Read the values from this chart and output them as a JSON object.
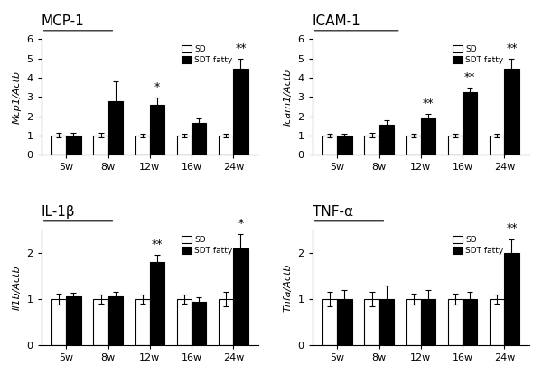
{
  "panels": [
    {
      "title": "MCP-1",
      "ylabel": "Mcp1/Actb",
      "ylim": [
        0,
        6
      ],
      "yticks": [
        0,
        1,
        2,
        3,
        4,
        5,
        6
      ],
      "time_points": [
        "5w",
        "8w",
        "12w",
        "16w",
        "24w"
      ],
      "sd_values": [
        1.0,
        1.0,
        1.0,
        1.0,
        1.0
      ],
      "sd_errors": [
        0.12,
        0.12,
        0.1,
        0.1,
        0.1
      ],
      "sdt_values": [
        1.0,
        2.8,
        2.6,
        1.65,
        4.45
      ],
      "sdt_errors": [
        0.15,
        1.0,
        0.35,
        0.25,
        0.55
      ],
      "significance": [
        "",
        "",
        "*",
        "",
        "**"
      ]
    },
    {
      "title": "ICAM-1",
      "ylabel": "Icam1/Actb",
      "ylim": [
        0,
        6
      ],
      "yticks": [
        0,
        1,
        2,
        3,
        4,
        5,
        6
      ],
      "time_points": [
        "5w",
        "8w",
        "12w",
        "16w",
        "24w"
      ],
      "sd_values": [
        1.0,
        1.0,
        1.0,
        1.0,
        1.0
      ],
      "sd_errors": [
        0.1,
        0.12,
        0.1,
        0.1,
        0.1
      ],
      "sdt_values": [
        1.0,
        1.55,
        1.9,
        3.25,
        4.45
      ],
      "sdt_errors": [
        0.08,
        0.25,
        0.2,
        0.25,
        0.55
      ],
      "significance": [
        "",
        "",
        "**",
        "**",
        "**"
      ]
    },
    {
      "title": "IL-1β",
      "ylabel": "Il1b/Actb",
      "ylim": [
        0,
        2.5
      ],
      "yticks": [
        0,
        1,
        2
      ],
      "time_points": [
        "5w",
        "8w",
        "12w",
        "16w",
        "24w"
      ],
      "sd_values": [
        1.0,
        1.0,
        1.0,
        1.0,
        1.0
      ],
      "sd_errors": [
        0.12,
        0.1,
        0.1,
        0.1,
        0.15
      ],
      "sdt_values": [
        1.05,
        1.05,
        1.8,
        0.95,
        2.1
      ],
      "sdt_errors": [
        0.08,
        0.1,
        0.15,
        0.08,
        0.3
      ],
      "significance": [
        "",
        "",
        "**",
        "",
        "*"
      ]
    },
    {
      "title": "TNF-α",
      "ylabel": "Tnfa/Actb",
      "ylim": [
        0,
        2.5
      ],
      "yticks": [
        0,
        1,
        2
      ],
      "time_points": [
        "5w",
        "8w",
        "12w",
        "16w",
        "24w"
      ],
      "sd_values": [
        1.0,
        1.0,
        1.0,
        1.0,
        1.0
      ],
      "sd_errors": [
        0.15,
        0.15,
        0.12,
        0.12,
        0.1
      ],
      "sdt_values": [
        1.0,
        1.0,
        1.0,
        1.0,
        2.0
      ],
      "sdt_errors": [
        0.2,
        0.3,
        0.2,
        0.15,
        0.3
      ],
      "significance": [
        "",
        "",
        "",
        "",
        "**"
      ]
    }
  ],
  "bar_width": 0.35,
  "sd_color": "white",
  "sdt_color": "black",
  "edge_color": "black",
  "background_color": "white",
  "legend_labels": [
    "SD",
    "SDT fatty"
  ],
  "sig_fontsize": 9,
  "tick_fontsize": 8,
  "label_fontsize": 8,
  "title_fontsize": 11
}
